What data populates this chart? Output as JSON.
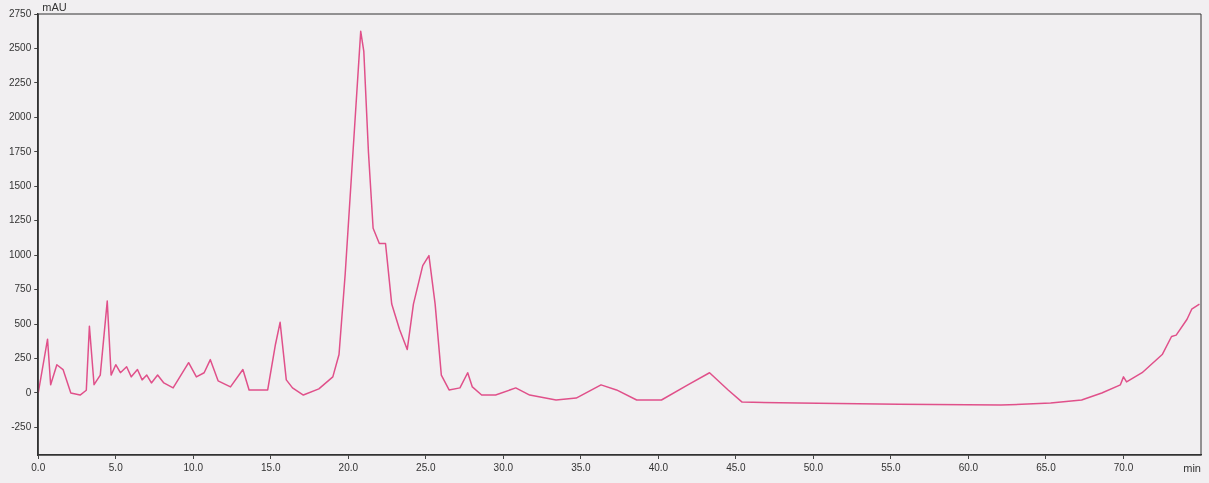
{
  "chart_data": {
    "type": "line",
    "xlabel": "min",
    "ylabel": "mAU",
    "x": [
      0,
      0.6,
      0.8,
      1.2,
      1.6,
      2.1,
      2.7,
      3.1,
      3.3,
      3.6,
      4.0,
      4.45,
      4.7,
      5.0,
      5.3,
      5.7,
      6.0,
      6.4,
      6.7,
      7.0,
      7.3,
      7.7,
      8.1,
      8.7,
      9.7,
      10.2,
      10.7,
      11.1,
      11.6,
      12.4,
      13.2,
      13.6,
      14.8,
      15.3,
      15.6,
      16.0,
      16.4,
      17.1,
      18.1,
      19.0,
      19.4,
      19.8,
      20.3,
      20.8,
      21.0,
      21.3,
      21.6,
      22.0,
      22.4,
      22.8,
      23.3,
      23.8,
      24.2,
      24.8,
      25.2,
      25.6,
      26.0,
      26.5,
      27.2,
      27.7,
      28.0,
      28.6,
      29.5,
      30.8,
      31.7,
      33.4,
      34.7,
      36.3,
      37.3,
      38.6,
      40.2,
      41.9,
      43.3,
      44.5,
      45.4,
      49.0,
      55.5,
      62.1,
      65.3,
      67.3,
      68.6,
      69.8,
      70.0,
      70.2,
      71.2,
      72.5,
      73.1,
      73.4,
      74.1,
      74.4,
      74.9
    ],
    "series": [
      {
        "color": "#e0508a",
        "values": [
          0,
          390,
          60,
          205,
          170,
          0,
          -15,
          20,
          484,
          60,
          130,
          667,
          130,
          205,
          147,
          190,
          117,
          170,
          95,
          130,
          73,
          130,
          73,
          37,
          220,
          117,
          147,
          242,
          88,
          44,
          170,
          22,
          22,
          352,
          513,
          95,
          37,
          -15,
          30,
          117,
          279,
          865,
          1745,
          2624,
          2478,
          1745,
          1195,
          1085,
          1085,
          645,
          462,
          315,
          645,
          924,
          997,
          645,
          130,
          22,
          37,
          147,
          44,
          -15,
          -15,
          37,
          -15,
          -51,
          -37,
          59,
          22,
          -51,
          -51,
          59,
          147,
          22,
          -66,
          -73,
          -81,
          -88,
          -73,
          -51,
          0,
          59,
          117,
          80,
          147,
          279,
          410,
          420,
          535,
          608,
          645
        ]
      }
    ],
    "xlim": [
      0,
      75
    ],
    "xticks": [
      {
        "value": 0,
        "label": "0.0"
      },
      {
        "value": 5,
        "label": "5.0"
      },
      {
        "value": 10,
        "label": "10.0"
      },
      {
        "value": 15,
        "label": "15.0"
      },
      {
        "value": 20,
        "label": "20.0"
      },
      {
        "value": 25,
        "label": "25.0"
      },
      {
        "value": 30,
        "label": "30.0"
      },
      {
        "value": 35,
        "label": "35.0"
      },
      {
        "value": 40,
        "label": "40.0"
      },
      {
        "value": 45,
        "label": "45.0"
      },
      {
        "value": 50,
        "label": "50.0"
      },
      {
        "value": 55,
        "label": "55.0"
      },
      {
        "value": 60,
        "label": "60.0"
      },
      {
        "value": 65,
        "label": "65.0"
      },
      {
        "value": 70,
        "label": "70.0"
      }
    ],
    "ylim": [
      -450,
      2750
    ],
    "yticks": [
      -250,
      0,
      250,
      500,
      750,
      1000,
      1250,
      1500,
      1750,
      2000,
      2250,
      2500,
      2750
    ],
    "grid": false,
    "legend": false,
    "marker": "none",
    "line_style": "solid"
  }
}
